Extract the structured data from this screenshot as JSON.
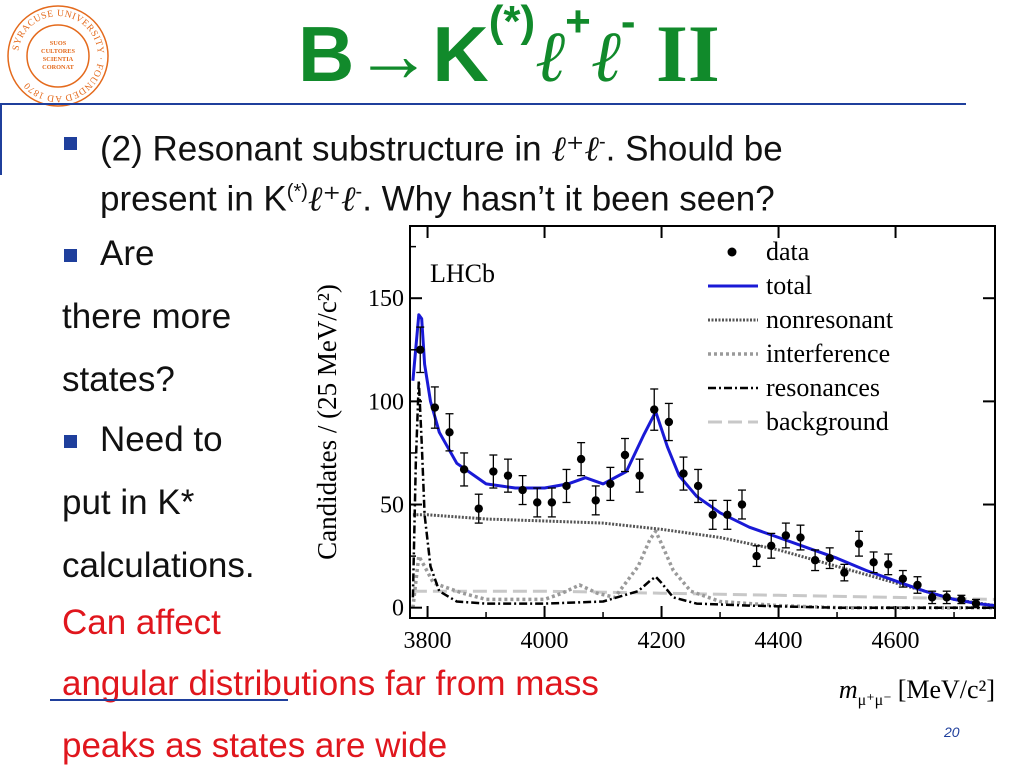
{
  "slide": {
    "logo_text": "SYRACUSE UNIVERSITY · FOUNDED AD 1870",
    "logo_inner": [
      "SUOS",
      "CULTORES",
      "SCIENTIA",
      "CORONAT"
    ],
    "title": {
      "b": "B",
      "arrow": "→",
      "k": "K",
      "k_sup": "(*)",
      "l1": "ℓ",
      "l1_sup": "+",
      "l2": "ℓ",
      "l2_sup": "-",
      "roman": " II"
    },
    "bullet1": {
      "line1_a": "(2) Resonant substructure in ",
      "line1_b": ". Should be",
      "line2_a": "present in K",
      "line2_sup": "(*)",
      "line2_b": ". Why hasn’t it been seen?",
      "ll": "ℓ⁺ℓ"
    },
    "bullet2": [
      "Are",
      "there more",
      "states?"
    ],
    "bullet3": [
      "Need to",
      "put in K*",
      "calculations."
    ],
    "red_text": [
      "Can affect",
      "angular distributions far from mass",
      "peaks as states are wide"
    ],
    "page_number": "20"
  },
  "chart_data": {
    "type": "line",
    "annotation": "LHCb",
    "xlabel_m": "m",
    "xlabel_sub": "μ⁺μ⁻",
    "xlabel_unit": "[MeV/c²]",
    "ylabel": "Candidates / (25 MeV/c²)",
    "xlim": [
      3770,
      4770
    ],
    "ylim": [
      -5,
      185
    ],
    "xticks": [
      3800,
      4000,
      4200,
      4400,
      4600
    ],
    "yticks": [
      0,
      50,
      100,
      150
    ],
    "legend_position": "top-right",
    "legend": [
      "data",
      "total",
      "nonresonant",
      "interference",
      "resonances",
      "background"
    ],
    "colors": {
      "data": "#000000",
      "total": "#1a1ad6",
      "nonresonant": "#555555",
      "interference": "#9a9a9a",
      "resonances": "#000000",
      "background": "#c8c8c8"
    },
    "data_points": [
      {
        "x": 3787.5,
        "y": 125,
        "err": 11
      },
      {
        "x": 3812.5,
        "y": 97,
        "err": 10
      },
      {
        "x": 3837.5,
        "y": 85,
        "err": 9
      },
      {
        "x": 3862.5,
        "y": 67,
        "err": 8
      },
      {
        "x": 3887.5,
        "y": 48,
        "err": 7
      },
      {
        "x": 3912.5,
        "y": 66,
        "err": 8
      },
      {
        "x": 3937.5,
        "y": 64,
        "err": 8
      },
      {
        "x": 3962.5,
        "y": 57,
        "err": 7
      },
      {
        "x": 3987.5,
        "y": 51,
        "err": 7
      },
      {
        "x": 4012.5,
        "y": 51,
        "err": 7
      },
      {
        "x": 4037.5,
        "y": 59,
        "err": 8
      },
      {
        "x": 4062.5,
        "y": 72,
        "err": 8
      },
      {
        "x": 4087.5,
        "y": 52,
        "err": 7
      },
      {
        "x": 4112.5,
        "y": 60,
        "err": 8
      },
      {
        "x": 4137.5,
        "y": 74,
        "err": 8
      },
      {
        "x": 4162.5,
        "y": 64,
        "err": 8
      },
      {
        "x": 4187.5,
        "y": 96,
        "err": 10
      },
      {
        "x": 4212.5,
        "y": 90,
        "err": 9
      },
      {
        "x": 4237.5,
        "y": 65,
        "err": 8
      },
      {
        "x": 4262.5,
        "y": 59,
        "err": 8
      },
      {
        "x": 4287.5,
        "y": 45,
        "err": 7
      },
      {
        "x": 4312.5,
        "y": 45,
        "err": 7
      },
      {
        "x": 4337.5,
        "y": 50,
        "err": 7
      },
      {
        "x": 4362.5,
        "y": 25,
        "err": 5
      },
      {
        "x": 4387.5,
        "y": 30,
        "err": 6
      },
      {
        "x": 4412.5,
        "y": 35,
        "err": 6
      },
      {
        "x": 4437.5,
        "y": 34,
        "err": 6
      },
      {
        "x": 4462.5,
        "y": 23,
        "err": 5
      },
      {
        "x": 4487.5,
        "y": 24,
        "err": 5
      },
      {
        "x": 4512.5,
        "y": 17,
        "err": 4
      },
      {
        "x": 4537.5,
        "y": 31,
        "err": 6
      },
      {
        "x": 4562.5,
        "y": 22,
        "err": 5
      },
      {
        "x": 4587.5,
        "y": 21,
        "err": 5
      },
      {
        "x": 4612.5,
        "y": 14,
        "err": 4
      },
      {
        "x": 4637.5,
        "y": 11,
        "err": 4
      },
      {
        "x": 4662.5,
        "y": 5,
        "err": 3
      },
      {
        "x": 4687.5,
        "y": 5,
        "err": 3
      },
      {
        "x": 4712.5,
        "y": 4,
        "err": 2
      },
      {
        "x": 4737.5,
        "y": 2,
        "err": 2
      }
    ],
    "curves": {
      "total": {
        "x": [
          3775,
          3785,
          3790,
          3795,
          3805,
          3820,
          3850,
          3900,
          3950,
          4000,
          4040,
          4070,
          4100,
          4140,
          4170,
          4190,
          4210,
          4230,
          4260,
          4300,
          4350,
          4400,
          4450,
          4500,
          4550,
          4600,
          4650,
          4700,
          4740,
          4770
        ],
        "y": [
          110,
          142,
          140,
          118,
          100,
          85,
          70,
          60,
          58,
          58,
          60,
          63,
          60,
          66,
          84,
          95,
          78,
          64,
          54,
          46,
          39,
          34,
          29,
          24,
          18,
          13,
          8,
          4,
          2,
          1
        ]
      },
      "nonresonant": {
        "x": [
          3775,
          3800,
          3900,
          4000,
          4100,
          4200,
          4300,
          4400,
          4500,
          4600,
          4700,
          4770
        ],
        "y": [
          45,
          45,
          43,
          42,
          41,
          38,
          34,
          28,
          20,
          12,
          4,
          1
        ]
      },
      "interference": {
        "x": [
          3775,
          3785,
          3795,
          3810,
          3830,
          3860,
          3900,
          4000,
          4030,
          4060,
          4090,
          4120,
          4160,
          4180,
          4190,
          4200,
          4220,
          4250,
          4300,
          4400,
          4500,
          4600,
          4700,
          4770
        ],
        "y": [
          0,
          25,
          20,
          12,
          10,
          7,
          4,
          4,
          7,
          11,
          7,
          5,
          20,
          33,
          37,
          31,
          18,
          8,
          3,
          1,
          0,
          0,
          0,
          0
        ]
      },
      "resonances": {
        "x": [
          3775,
          3780,
          3785,
          3790,
          3795,
          3805,
          3820,
          3850,
          3900,
          4000,
          4100,
          4160,
          4180,
          4190,
          4200,
          4220,
          4260,
          4350,
          4500,
          4770
        ],
        "y": [
          5,
          70,
          110,
          80,
          45,
          20,
          8,
          3,
          2,
          2,
          3,
          8,
          13,
          15,
          12,
          5,
          2,
          1,
          0,
          0
        ]
      },
      "background": {
        "x": [
          3775,
          3800,
          4000,
          4200,
          4400,
          4600,
          4770
        ],
        "y": [
          8,
          8,
          8,
          7,
          6,
          5,
          4
        ]
      }
    }
  }
}
